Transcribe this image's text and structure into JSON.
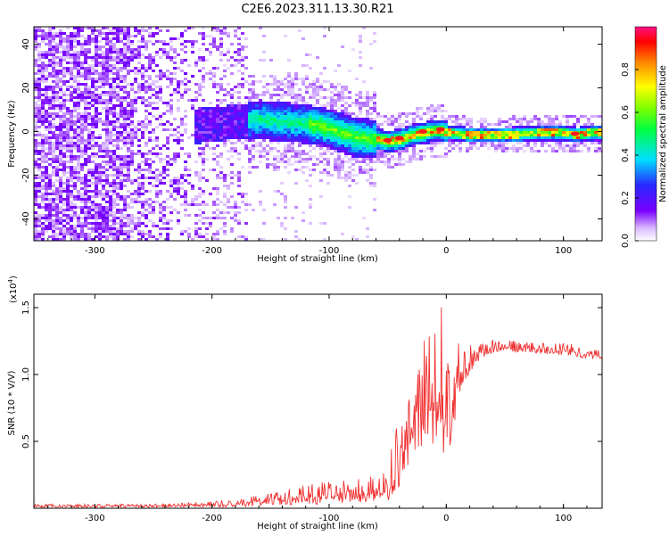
{
  "title": "C2E6.2023.311.13.30.R21",
  "colors": {
    "snr_line": "#f03030",
    "axis": "#000000",
    "background": "#ffffff"
  },
  "chart_data": [
    {
      "type": "heatmap",
      "xlabel": "Height of straight line (km)",
      "ylabel": "Frequency (Hz)",
      "xlim": [
        -352,
        133
      ],
      "ylim": [
        -50,
        48
      ],
      "x_ticks": [
        -300,
        -200,
        -100,
        0,
        100
      ],
      "x_tick_labels": [
        "-300",
        "-200",
        "-100",
        "0",
        "100"
      ],
      "y_ticks": [
        -40,
        -20,
        0,
        20,
        40
      ],
      "y_tick_labels": [
        "-40",
        "-20",
        "0",
        "20",
        "40"
      ],
      "colorbar": {
        "label": "Normalized spectral amplitude",
        "range": [
          0,
          1
        ],
        "ticks": [
          0.0,
          0.2,
          0.4,
          0.6,
          0.8
        ],
        "tick_labels": [
          "0.0",
          "0.2",
          "0.4",
          "0.6",
          "0.8"
        ],
        "colormap": "rainbow (white-purple-blue-cyan-green-yellow-red-magenta)"
      },
      "ridge": {
        "x": [
          -215,
          -180,
          -160,
          -140,
          -120,
          -100,
          -80,
          -60,
          -50,
          -40,
          -30,
          -20,
          -10,
          -5,
          0,
          20,
          50,
          80,
          100,
          110,
          120,
          133
        ],
        "y": [
          3,
          5,
          6,
          5,
          4,
          2,
          -2,
          -3,
          -4,
          -3,
          -1,
          0,
          1,
          1,
          0,
          -1,
          -1,
          0,
          0,
          -1,
          0,
          0
        ]
      },
      "grid": false
    },
    {
      "type": "line",
      "xlabel": "Height of straight line (km)",
      "ylabel": "SNR (10 * V/V)",
      "y_multiplier_label": "(x10",
      "y_multiplier_exp": "4",
      "y_multiplier_close": ")",
      "xlim": [
        -352,
        133
      ],
      "ylim": [
        0,
        1.6
      ],
      "x_ticks": [
        -300,
        -200,
        -100,
        0,
        100
      ],
      "x_tick_labels": [
        "-300",
        "-200",
        "-100",
        "0",
        "100"
      ],
      "y_ticks": [
        0.5,
        1.0,
        1.5
      ],
      "y_tick_labels": [
        "0.5",
        "1.0",
        "1.5"
      ],
      "series": [
        {
          "x": [
            -352,
            -300,
            -250,
            -200,
            -180,
            -160,
            -140,
            -120,
            -100,
            -80,
            -60,
            -50,
            -45,
            -40,
            -35,
            -30,
            -25,
            -20,
            -15,
            -10,
            -5,
            0,
            5,
            10,
            15,
            20,
            30,
            40,
            50,
            60,
            70,
            80,
            90,
            100,
            110,
            120,
            133
          ],
          "y": [
            0.02,
            0.02,
            0.02,
            0.03,
            0.03,
            0.06,
            0.07,
            0.09,
            0.1,
            0.12,
            0.13,
            0.13,
            0.25,
            0.35,
            0.5,
            0.65,
            0.8,
            0.85,
            0.75,
            0.95,
            1.1,
            0.7,
            0.85,
            1.0,
            1.05,
            1.12,
            1.18,
            1.2,
            1.22,
            1.2,
            1.2,
            1.19,
            1.18,
            1.18,
            1.17,
            1.15,
            1.14
          ],
          "envelope_max": [
            0.03,
            0.03,
            0.03,
            0.05,
            0.06,
            0.1,
            0.13,
            0.18,
            0.2,
            0.22,
            0.25,
            0.3,
            0.55,
            0.65,
            0.7,
            1.0,
            1.35,
            1.4,
            1.3,
            1.5,
            1.6,
            1.3,
            1.2,
            1.25,
            1.2,
            1.22,
            1.24,
            1.26,
            1.26,
            1.25,
            1.24,
            1.24,
            1.22,
            1.28,
            1.22,
            1.2,
            1.18
          ],
          "envelope_min": [
            0.0,
            0.0,
            0.0,
            0.0,
            0.0,
            0.0,
            0.0,
            0.0,
            0.0,
            0.01,
            0.02,
            0.02,
            0.05,
            0.08,
            0.15,
            0.2,
            0.3,
            0.3,
            0.25,
            0.3,
            0.4,
            0.02,
            0.4,
            0.7,
            0.85,
            0.95,
            1.1,
            1.15,
            1.17,
            1.15,
            1.15,
            1.14,
            1.13,
            1.12,
            1.12,
            1.1,
            1.1
          ]
        }
      ],
      "grid": false
    }
  ]
}
